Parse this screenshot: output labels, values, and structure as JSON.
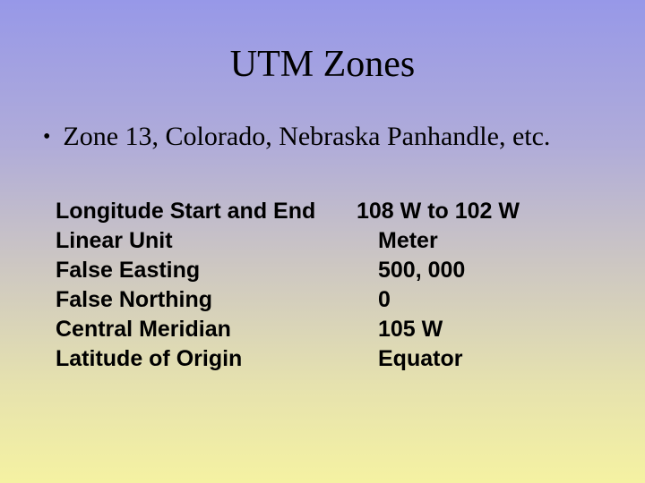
{
  "slide": {
    "title": "UTM Zones",
    "bullet": "Zone 13,  Colorado, Nebraska Panhandle, etc.",
    "properties": {
      "labels": {
        "longitude": "Longitude Start and End",
        "linear_unit": "Linear Unit",
        "false_easting": "False Easting",
        "false_northing": "False Northing",
        "central_meridian": "Central Meridian",
        "latitude_origin": "Latitude of Origin"
      },
      "values": {
        "longitude": "108 W to 102 W",
        "linear_unit": "Meter",
        "false_easting": "500, 000",
        "false_northing": "0",
        "central_meridian": "105 W",
        "latitude_origin": "Equator"
      }
    }
  },
  "style": {
    "gradient_top": "#9798e8",
    "gradient_bottom": "#f5f2a2",
    "title_fontsize": 42,
    "body_serif_fontsize": 30,
    "body_sans_fontsize": 25,
    "text_color": "#000000"
  }
}
